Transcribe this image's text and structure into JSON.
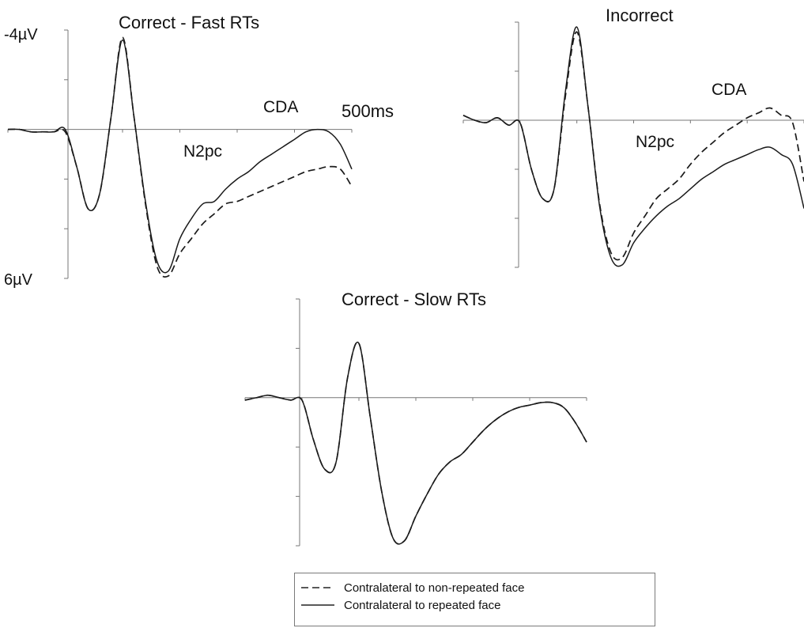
{
  "chart_data": [
    {
      "type": "line",
      "title": "Correct - Fast RTs",
      "axis_top_label": "-4µV",
      "axis_bottom_label": "6µV",
      "time_label": "500ms",
      "ylim": [
        -4,
        6
      ],
      "xlim": [
        -100,
        500
      ],
      "annotations": [
        "N2pc",
        "CDA"
      ],
      "x": [
        -100,
        -80,
        -60,
        -40,
        -20,
        0,
        20,
        40,
        60,
        80,
        100,
        120,
        140,
        160,
        180,
        200,
        220,
        240,
        260,
        280,
        300,
        320,
        340,
        360,
        380,
        400,
        420,
        440,
        460,
        480,
        500
      ],
      "series": [
        {
          "name": "Contralateral to non-repeated face",
          "dash": true,
          "values": [
            0,
            0,
            0.1,
            0.1,
            0.1,
            0.1,
            1.5,
            3.2,
            2.6,
            -0.5,
            -3.7,
            -0.5,
            3.0,
            5.5,
            5.9,
            5.0,
            4.4,
            3.8,
            3.4,
            3.0,
            2.9,
            2.7,
            2.5,
            2.3,
            2.1,
            1.9,
            1.7,
            1.6,
            1.5,
            1.6,
            2.3
          ]
        },
        {
          "name": "Contralateral to repeated face",
          "dash": false,
          "values": [
            0,
            0,
            0.1,
            0.1,
            0.1,
            0,
            1.5,
            3.2,
            2.6,
            -0.5,
            -3.6,
            -0.5,
            2.9,
            5.3,
            5.7,
            4.4,
            3.6,
            3.0,
            2.9,
            2.4,
            2.0,
            1.7,
            1.3,
            1.0,
            0.7,
            0.4,
            0.1,
            0.0,
            0.1,
            0.6,
            1.6
          ]
        }
      ]
    },
    {
      "type": "line",
      "title": "Incorrect",
      "time_label": "",
      "ylim": [
        -4,
        6
      ],
      "xlim": [
        -100,
        500
      ],
      "annotations": [
        "N2pc",
        "CDA"
      ],
      "x": [
        -100,
        -80,
        -60,
        -40,
        -20,
        0,
        20,
        40,
        60,
        80,
        100,
        120,
        140,
        160,
        180,
        200,
        220,
        240,
        260,
        280,
        300,
        320,
        340,
        360,
        380,
        400,
        420,
        440,
        460,
        480,
        500
      ],
      "series": [
        {
          "name": "Contralateral to non-repeated face",
          "dash": true,
          "values": [
            -0.2,
            0,
            0.1,
            -0.1,
            0.2,
            0.1,
            2.0,
            3.2,
            2.8,
            -1.0,
            -3.6,
            -0.5,
            3.4,
            5.4,
            5.6,
            4.6,
            3.9,
            3.2,
            2.8,
            2.4,
            1.8,
            1.3,
            0.9,
            0.5,
            0.2,
            -0.1,
            -0.3,
            -0.5,
            -0.2,
            0.1,
            2.5
          ]
        },
        {
          "name": "Contralateral to repeated face",
          "dash": false,
          "values": [
            -0.2,
            0,
            0.1,
            -0.1,
            0.2,
            0.1,
            2.0,
            3.2,
            2.8,
            -1.2,
            -3.8,
            -0.5,
            3.5,
            5.6,
            5.9,
            5.0,
            4.4,
            3.9,
            3.5,
            3.2,
            2.8,
            2.4,
            2.1,
            1.8,
            1.6,
            1.4,
            1.2,
            1.1,
            1.4,
            1.8,
            3.6
          ]
        }
      ]
    },
    {
      "type": "line",
      "title": "Correct - Slow RTs",
      "time_label": "",
      "ylim": [
        -4,
        6
      ],
      "xlim": [
        -100,
        500
      ],
      "annotations": [],
      "x": [
        -100,
        -80,
        -60,
        -40,
        -20,
        0,
        20,
        40,
        60,
        80,
        100,
        120,
        140,
        160,
        180,
        200,
        220,
        240,
        260,
        280,
        300,
        320,
        340,
        360,
        380,
        400,
        420,
        440,
        460,
        480,
        500
      ],
      "series": [
        {
          "name": "Contralateral to non-repeated face",
          "dash": true,
          "values": [
            0.1,
            0,
            -0.1,
            0,
            0.1,
            0.1,
            1.7,
            2.9,
            2.6,
            -0.8,
            -2.2,
            0.8,
            3.8,
            5.7,
            5.8,
            4.8,
            3.9,
            3.1,
            2.6,
            2.3,
            1.8,
            1.3,
            0.9,
            0.6,
            0.4,
            0.3,
            0.2,
            0.2,
            0.4,
            1.0,
            1.8
          ]
        },
        {
          "name": "Contralateral to repeated face",
          "dash": false,
          "values": [
            0.1,
            0,
            -0.1,
            0,
            0.1,
            0.1,
            1.7,
            2.9,
            2.6,
            -0.8,
            -2.2,
            0.8,
            3.8,
            5.7,
            5.8,
            4.8,
            3.9,
            3.1,
            2.6,
            2.3,
            1.8,
            1.3,
            0.9,
            0.6,
            0.4,
            0.3,
            0.2,
            0.2,
            0.4,
            1.0,
            1.8
          ]
        }
      ]
    }
  ],
  "legend": {
    "items": [
      {
        "label": "Contralateral to non-repeated face",
        "dash": true
      },
      {
        "label": "Contralateral to repeated face",
        "dash": false
      }
    ]
  }
}
